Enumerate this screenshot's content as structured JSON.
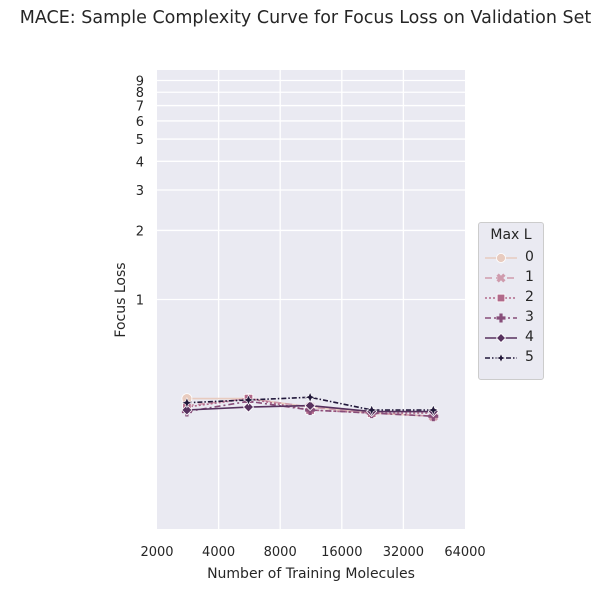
{
  "chart_data": {
    "type": "line",
    "title": "MACE: Sample Complexity Curve for Focus Loss on Validation Set",
    "xlabel": "Number of Training Molecules",
    "ylabel": "Focus Loss",
    "x_scale": "log2",
    "y_scale": "log",
    "xlim": [
      2000,
      64000
    ],
    "ylim": [
      0.1,
      10
    ],
    "x_ticks": [
      2000,
      4000,
      8000,
      16000,
      32000,
      64000
    ],
    "x_tick_labels": [
      "2000",
      "4000",
      "8000",
      "16000",
      "32000",
      "64000"
    ],
    "y_ticks": [
      1,
      2,
      3,
      4,
      5,
      6,
      7,
      8,
      9
    ],
    "y_tick_labels": [
      "1",
      "2",
      "3",
      "4",
      "5",
      "6",
      "7",
      "8",
      "9"
    ],
    "grid": true,
    "legend_title": "Max L",
    "legend_position": "right",
    "x": [
      2800,
      5600,
      11200,
      22400,
      44800
    ],
    "series": [
      {
        "name": "0",
        "values": [
          0.37,
          0.37,
          0.34,
          0.32,
          0.31
        ],
        "color": "#e8cbbf",
        "marker": "circle",
        "dash": ""
      },
      {
        "name": "1",
        "values": [
          0.345,
          0.37,
          0.34,
          0.32,
          0.31
        ],
        "color": "#cf9bad",
        "marker": "x",
        "dash": "7 4"
      },
      {
        "name": "2",
        "values": [
          0.34,
          0.37,
          0.33,
          0.32,
          0.32
        ],
        "color": "#b1698a",
        "marker": "square",
        "dash": "2 2"
      },
      {
        "name": "3",
        "values": [
          0.325,
          0.36,
          0.33,
          0.32,
          0.31
        ],
        "color": "#874d79",
        "marker": "plus",
        "dash": "6 3 2 3"
      },
      {
        "name": "4",
        "values": [
          0.33,
          0.34,
          0.345,
          0.325,
          0.325
        ],
        "color": "#57315e",
        "marker": "diamond",
        "dash": ""
      },
      {
        "name": "5",
        "values": [
          0.355,
          0.365,
          0.375,
          0.33,
          0.33
        ],
        "color": "#21173a",
        "marker": "star",
        "dash": "5 2 1.5 2"
      }
    ]
  }
}
